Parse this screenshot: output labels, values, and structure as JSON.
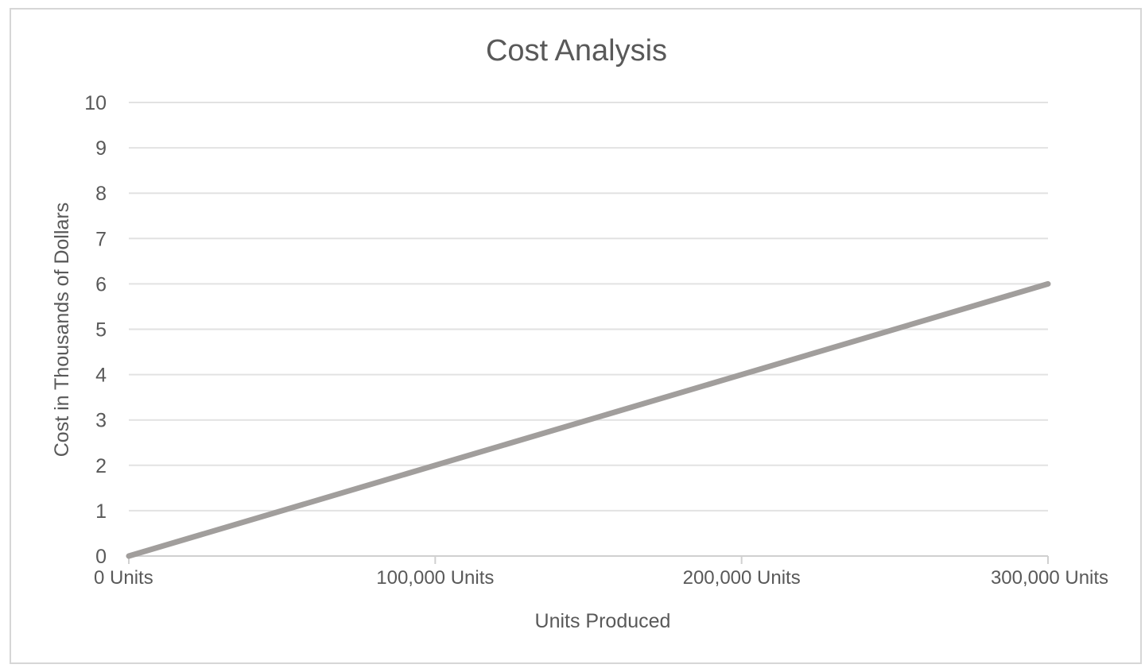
{
  "chart_data": {
    "type": "line",
    "title": "Cost Analysis",
    "xlabel": "Units Produced",
    "ylabel": "Cost in Thousands of Dollars",
    "x": [
      0,
      100000,
      200000,
      300000
    ],
    "x_tick_labels": [
      "0 Units",
      "100,000 Units",
      "200,000 Units",
      "300,000 Units"
    ],
    "y_ticks": [
      0,
      1,
      2,
      3,
      4,
      5,
      6,
      7,
      8,
      9,
      10
    ],
    "xlim": [
      0,
      300000
    ],
    "ylim": [
      0,
      10
    ],
    "grid": true,
    "legend": "none",
    "series": [
      {
        "color": "#a19e9c",
        "x": [
          0,
          300000
        ],
        "values": [
          0,
          6
        ]
      }
    ]
  }
}
